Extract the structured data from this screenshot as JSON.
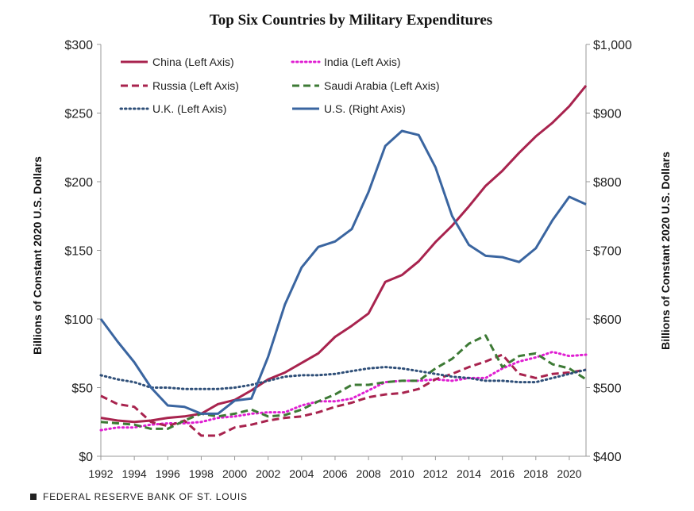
{
  "chart_data": {
    "type": "line",
    "title": "Top Six Countries by Military Expenditures",
    "ylabel_left": "Billions of Constant  2020 U.S. Dollars",
    "ylabel_right": "Billions of Constant  2020 U.S. Dollars",
    "ylim_left": [
      0,
      300
    ],
    "ylim_right": [
      400,
      1000
    ],
    "xlim": [
      1992,
      2021
    ],
    "x_ticks": [
      1992,
      1994,
      1996,
      1998,
      2000,
      2002,
      2004,
      2006,
      2008,
      2010,
      2012,
      2014,
      2016,
      2018,
      2020
    ],
    "y_ticks_left": [
      "$0",
      "$50",
      "$100",
      "$150",
      "$200",
      "$250",
      "$300"
    ],
    "y_ticks_right": [
      "$400",
      "$500",
      "$600",
      "$700",
      "$800",
      "$900",
      "$1,000"
    ],
    "x": [
      1992,
      1993,
      1994,
      1995,
      1996,
      1997,
      1998,
      1999,
      2000,
      2001,
      2002,
      2003,
      2004,
      2005,
      2006,
      2007,
      2008,
      2009,
      2010,
      2011,
      2012,
      2013,
      2014,
      2015,
      2016,
      2017,
      2018,
      2019,
      2020,
      2021
    ],
    "series": [
      {
        "name": "China (Left Axis)",
        "axis": "left",
        "color": "#a8234e",
        "dash": "solid",
        "values": [
          28,
          26,
          25,
          26,
          28,
          29,
          31,
          38,
          41,
          48,
          56,
          61,
          68,
          75,
          87,
          95,
          104,
          127,
          132,
          142,
          156,
          168,
          182,
          197,
          208,
          221,
          233,
          243,
          255,
          270
        ]
      },
      {
        "name": "India (Left Axis)",
        "axis": "left",
        "color": "#e01fd2",
        "dash": "dotted",
        "values": [
          19,
          21,
          21,
          23,
          24,
          24,
          25,
          28,
          29,
          31,
          32,
          32,
          37,
          40,
          40,
          42,
          48,
          54,
          55,
          55,
          56,
          55,
          57,
          57,
          64,
          69,
          72,
          76,
          73,
          74
        ]
      },
      {
        "name": "Russia (Left Axis)",
        "axis": "left",
        "color": "#a8234e",
        "dash": "dashed",
        "values": [
          44,
          38,
          36,
          25,
          22,
          26,
          15,
          15,
          21,
          23,
          26,
          28,
          29,
          32,
          36,
          39,
          43,
          45,
          46,
          49,
          56,
          60,
          65,
          69,
          74,
          60,
          57,
          60,
          61,
          63
        ]
      },
      {
        "name": "Saudi Arabia (Left Axis)",
        "axis": "left",
        "color": "#3d7a35",
        "dash": "dashed",
        "values": [
          25,
          24,
          23,
          20,
          20,
          26,
          31,
          29,
          31,
          34,
          29,
          30,
          34,
          40,
          45,
          52,
          52,
          54,
          55,
          55,
          64,
          71,
          82,
          88,
          65,
          73,
          75,
          67,
          64,
          56
        ]
      },
      {
        "name": "U.K. (Left Axis)",
        "axis": "left",
        "color": "#2f4f78",
        "dash": "dotted",
        "values": [
          59,
          56,
          54,
          50,
          50,
          49,
          49,
          49,
          50,
          52,
          55,
          58,
          59,
          59,
          60,
          62,
          64,
          65,
          64,
          62,
          60,
          58,
          57,
          55,
          55,
          54,
          54,
          57,
          60,
          63
        ]
      },
      {
        "name": "U.S. (Right Axis)",
        "axis": "right",
        "color": "#3a65a0",
        "dash": "solid",
        "values": [
          600,
          567,
          537,
          500,
          474,
          472,
          462,
          462,
          481,
          484,
          545,
          621,
          675,
          705,
          713,
          731,
          785,
          852,
          874,
          868,
          821,
          750,
          708,
          692,
          690,
          683,
          703,
          744,
          778,
          767
        ]
      }
    ],
    "legend": "top-left, two columns",
    "grid": false
  },
  "footer": {
    "text": "FEDERAL RESERVE BANK OF ST. LOUIS"
  }
}
